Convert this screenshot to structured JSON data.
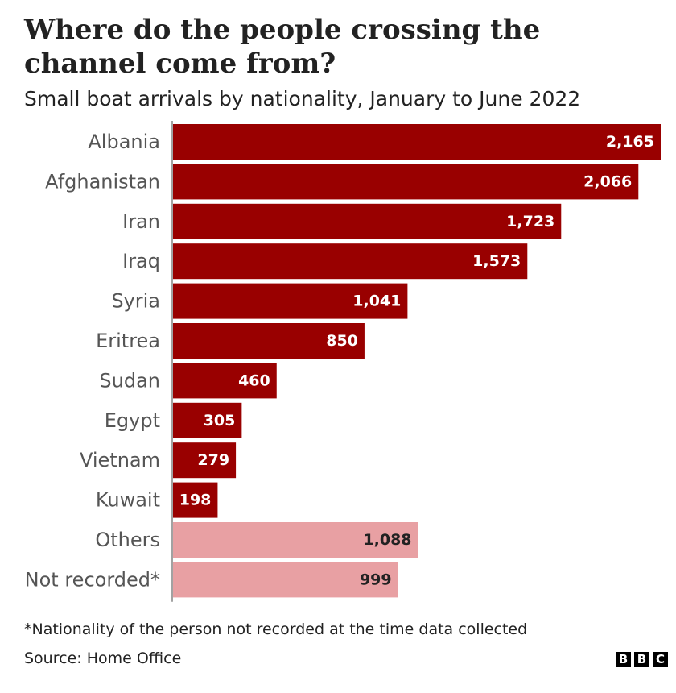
{
  "header": {
    "title": "Where do the people crossing the channel come from?",
    "subtitle": "Small boat arrivals by nationality, January to June 2022"
  },
  "chart_data": {
    "type": "bar",
    "orientation": "horizontal",
    "categories": [
      "Albania",
      "Afghanistan",
      "Iran",
      "Iraq",
      "Syria",
      "Eritrea",
      "Sudan",
      "Egypt",
      "Vietnam",
      "Kuwait",
      "Others",
      "Not recorded*"
    ],
    "values": [
      2165,
      2066,
      1723,
      1573,
      1041,
      850,
      460,
      305,
      279,
      198,
      1088,
      999
    ],
    "value_labels": [
      "2,165",
      "2,066",
      "1,723",
      "1,573",
      "1,041",
      "850",
      "460",
      "305",
      "279",
      "198",
      "1,088",
      "999"
    ],
    "bar_colors": [
      "#990000",
      "#990000",
      "#990000",
      "#990000",
      "#990000",
      "#990000",
      "#990000",
      "#990000",
      "#990000",
      "#990000",
      "#e8a0a3",
      "#e8a0a3"
    ],
    "label_colors": [
      "#ffffff",
      "#ffffff",
      "#ffffff",
      "#ffffff",
      "#ffffff",
      "#ffffff",
      "#ffffff",
      "#ffffff",
      "#ffffff",
      "#ffffff",
      "#222222",
      "#222222"
    ],
    "xlim": [
      0,
      2165
    ],
    "grid": false,
    "legend": "none"
  },
  "footer": {
    "footnote": "*Nationality of the person not recorded at the time data collected",
    "source": "Source: Home Office",
    "logo_letters": [
      "B",
      "B",
      "C"
    ]
  }
}
